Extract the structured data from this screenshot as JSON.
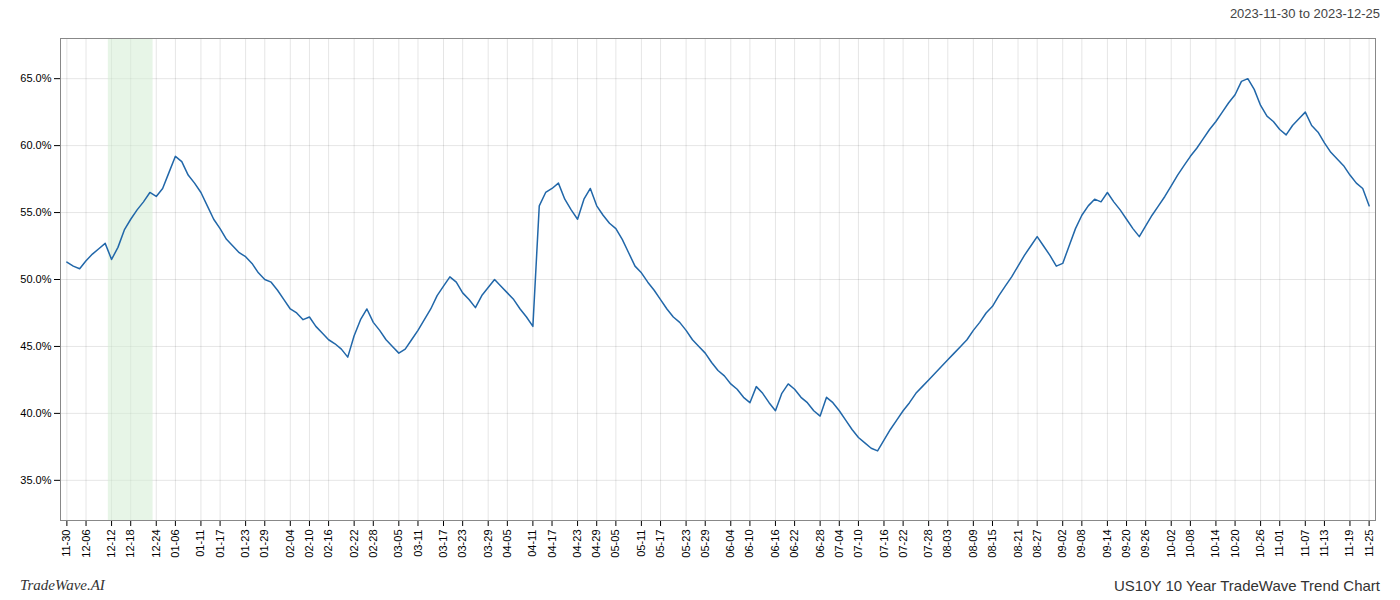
{
  "chart_data": {
    "type": "line",
    "title": "US10Y 10 Year TradeWave Trend Chart",
    "subtitle": "2023-11-30 to 2023-12-25",
    "annotations": [
      "TradeWave.AI"
    ],
    "color": "#2167a9",
    "grid": true,
    "categories": [
      "11-30",
      null,
      null,
      "12-06",
      null,
      null,
      null,
      "12-12",
      null,
      null,
      "12-18",
      null,
      null,
      null,
      "12-24",
      null,
      null,
      "01-06",
      null,
      null,
      null,
      "01-11",
      null,
      null,
      "01-17",
      null,
      null,
      null,
      "01-23",
      null,
      null,
      "01-29",
      null,
      null,
      null,
      "02-04",
      null,
      null,
      "02-10",
      null,
      null,
      "02-16",
      null,
      null,
      null,
      "02-22",
      null,
      null,
      "02-28",
      null,
      null,
      null,
      "03-05",
      null,
      null,
      "03-11",
      null,
      null,
      null,
      "03-17",
      null,
      null,
      "03-23",
      null,
      null,
      null,
      "03-29",
      null,
      null,
      "04-05",
      null,
      null,
      null,
      "04-11",
      null,
      null,
      "04-17",
      null,
      null,
      null,
      "04-23",
      null,
      null,
      "04-29",
      null,
      null,
      "05-05",
      null,
      null,
      null,
      "05-11",
      null,
      null,
      "05-17",
      null,
      null,
      null,
      "05-23",
      null,
      null,
      "05-29",
      null,
      null,
      null,
      "06-04",
      null,
      null,
      "06-10",
      null,
      null,
      null,
      "06-16",
      null,
      null,
      "06-22",
      null,
      null,
      null,
      "06-28",
      null,
      null,
      "07-04",
      null,
      null,
      "07-10",
      null,
      null,
      null,
      "07-16",
      null,
      null,
      "07-22",
      null,
      null,
      null,
      "07-28",
      null,
      null,
      "08-03",
      null,
      null,
      null,
      "08-09",
      null,
      null,
      "08-15",
      null,
      null,
      null,
      "08-21",
      null,
      null,
      "08-27",
      null,
      null,
      null,
      "09-02",
      null,
      null,
      "09-08",
      null,
      null,
      null,
      "09-14",
      null,
      null,
      "09-20",
      null,
      null,
      "09-26",
      null,
      null,
      null,
      "10-02",
      null,
      null,
      "10-08",
      null,
      null,
      null,
      "10-14",
      null,
      null,
      "10-20",
      null,
      null,
      null,
      "10-26",
      null,
      null,
      "11-01",
      null,
      null,
      null,
      "11-07",
      null,
      null,
      "11-13",
      null,
      null,
      null,
      "11-19",
      null,
      null,
      "11-25"
    ],
    "values": [
      0.513,
      0.51,
      0.508,
      0.514,
      0.519,
      0.523,
      0.527,
      0.515,
      0.524,
      0.537,
      0.545,
      0.552,
      0.558,
      0.565,
      0.562,
      0.568,
      0.58,
      0.592,
      0.588,
      0.578,
      0.572,
      0.565,
      0.555,
      0.545,
      0.538,
      0.53,
      0.525,
      0.52,
      0.517,
      0.512,
      0.505,
      0.5,
      0.498,
      0.492,
      0.485,
      0.478,
      0.475,
      0.47,
      0.472,
      0.465,
      0.46,
      0.455,
      0.452,
      0.448,
      0.442,
      0.458,
      0.47,
      0.478,
      0.468,
      0.462,
      0.455,
      0.45,
      0.445,
      0.448,
      0.455,
      0.462,
      0.47,
      0.478,
      0.488,
      0.495,
      0.502,
      0.498,
      0.49,
      0.485,
      0.479,
      0.488,
      0.494,
      0.5,
      0.495,
      0.49,
      0.485,
      0.478,
      0.472,
      0.465,
      0.555,
      0.565,
      0.568,
      0.572,
      0.56,
      0.552,
      0.545,
      0.56,
      0.568,
      0.555,
      0.548,
      0.542,
      0.538,
      0.53,
      0.52,
      0.51,
      0.505,
      0.498,
      0.492,
      0.485,
      0.478,
      0.472,
      0.468,
      0.462,
      0.455,
      0.45,
      0.445,
      0.438,
      0.432,
      0.428,
      0.422,
      0.418,
      0.412,
      0.408,
      0.42,
      0.415,
      0.408,
      0.402,
      0.415,
      0.422,
      0.418,
      0.412,
      0.408,
      0.402,
      0.398,
      0.412,
      0.408,
      0.402,
      0.395,
      0.388,
      0.382,
      0.378,
      0.374,
      0.372,
      0.38,
      0.388,
      0.395,
      0.402,
      0.408,
      0.415,
      0.42,
      0.425,
      0.43,
      0.435,
      0.44,
      0.445,
      0.45,
      0.455,
      0.462,
      0.468,
      0.475,
      0.48,
      0.488,
      0.495,
      0.502,
      0.51,
      0.518,
      0.525,
      0.532,
      0.525,
      0.518,
      0.51,
      0.512,
      0.525,
      0.538,
      0.548,
      0.555,
      0.56,
      0.558,
      0.565,
      0.558,
      0.552,
      0.545,
      0.538,
      0.532,
      0.54,
      0.548,
      0.555,
      0.562,
      0.57,
      0.578,
      0.585,
      0.592,
      0.598,
      0.605,
      0.612,
      0.618,
      0.625,
      0.632,
      0.638,
      0.648,
      0.65,
      0.642,
      0.63,
      0.622,
      0.618,
      0.612,
      0.608,
      0.615,
      0.62,
      0.625,
      0.615,
      0.61,
      0.602,
      0.595,
      0.59,
      0.585,
      0.578,
      0.572,
      0.568,
      0.555
    ],
    "highlight": {
      "start": 7,
      "end": 13,
      "color": "#d4ecd4"
    },
    "ylim": [
      0.32,
      0.68
    ],
    "yticks": [
      {
        "value": 0.35,
        "label": "35.0%"
      },
      {
        "value": 0.4,
        "label": "40.0%"
      },
      {
        "value": 0.45,
        "label": "45.0%"
      },
      {
        "value": 0.5,
        "label": "50.0%"
      },
      {
        "value": 0.55,
        "label": "55.0%"
      },
      {
        "value": 0.6,
        "label": "60.0%"
      },
      {
        "value": 0.65,
        "label": "65.0%"
      }
    ]
  }
}
